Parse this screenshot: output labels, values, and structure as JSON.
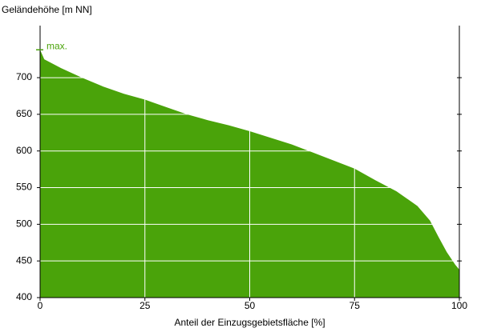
{
  "chart_data": {
    "type": "area",
    "y_label": "Geländehöhe [m NN]",
    "x_label": "Anteil der Einzugsgebietsfläche [%]",
    "x": [
      0,
      1,
      5,
      10,
      15,
      20,
      25,
      30,
      35,
      40,
      45,
      50,
      55,
      60,
      65,
      70,
      75,
      80,
      85,
      90,
      93,
      95,
      97,
      99,
      100
    ],
    "values": [
      738,
      725,
      713,
      700,
      688,
      678,
      670,
      660,
      650,
      642,
      635,
      627,
      618,
      609,
      598,
      587,
      576,
      560,
      545,
      525,
      505,
      483,
      462,
      445,
      438
    ],
    "color": "#4aa30a",
    "xlim": [
      0,
      100
    ],
    "xticks": [
      0,
      25,
      50,
      75,
      100
    ],
    "ylim": [
      400,
      771
    ],
    "yticks": [
      400,
      450,
      500,
      550,
      600,
      650,
      700
    ],
    "grid": true,
    "annotation": {
      "text": "max.",
      "value": 738
    }
  }
}
